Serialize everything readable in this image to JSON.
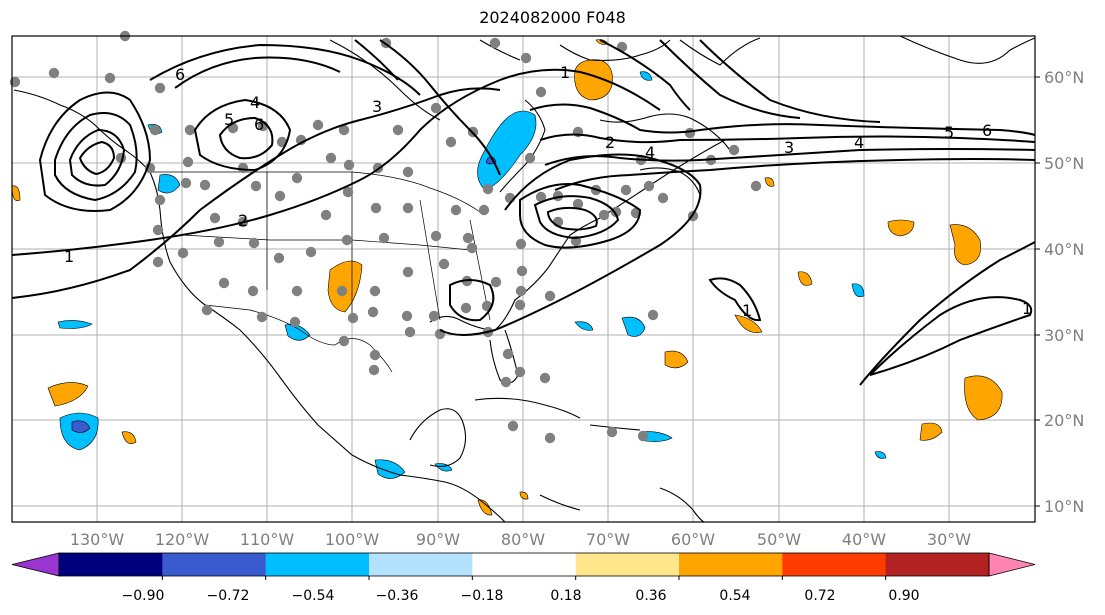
{
  "title": "2024082000 F048",
  "lat_labels": [
    "60°N",
    "50°N",
    "40°N",
    "30°N",
    "20°N",
    "10°N"
  ],
  "lon_labels": [
    "130°W",
    "120°W",
    "110°W",
    "100°W",
    "90°W",
    "80°W",
    "70°W",
    "60°W",
    "50°W",
    "40°W",
    "30°W"
  ],
  "colorbar": {
    "ticks": [
      "−0.90",
      "−0.72",
      "−0.54",
      "−0.36",
      "−0.18",
      "0.18",
      "0.36",
      "0.54",
      "0.72",
      "0.90"
    ],
    "colors": [
      "#9a36d0",
      "#00007f",
      "#3a5bd0",
      "#00bfff",
      "#b3e2ff",
      "#ffffff",
      "#ffe68c",
      "#ffa500",
      "#ff3c00",
      "#b22222",
      "#ff85b0"
    ]
  },
  "contour_labels": [
    "1",
    "2",
    "3",
    "4",
    "5",
    "6"
  ],
  "colors": {
    "frame": "#000000",
    "grid": "#b0b0b0",
    "station": "#808080",
    "coast": "#000000"
  }
}
